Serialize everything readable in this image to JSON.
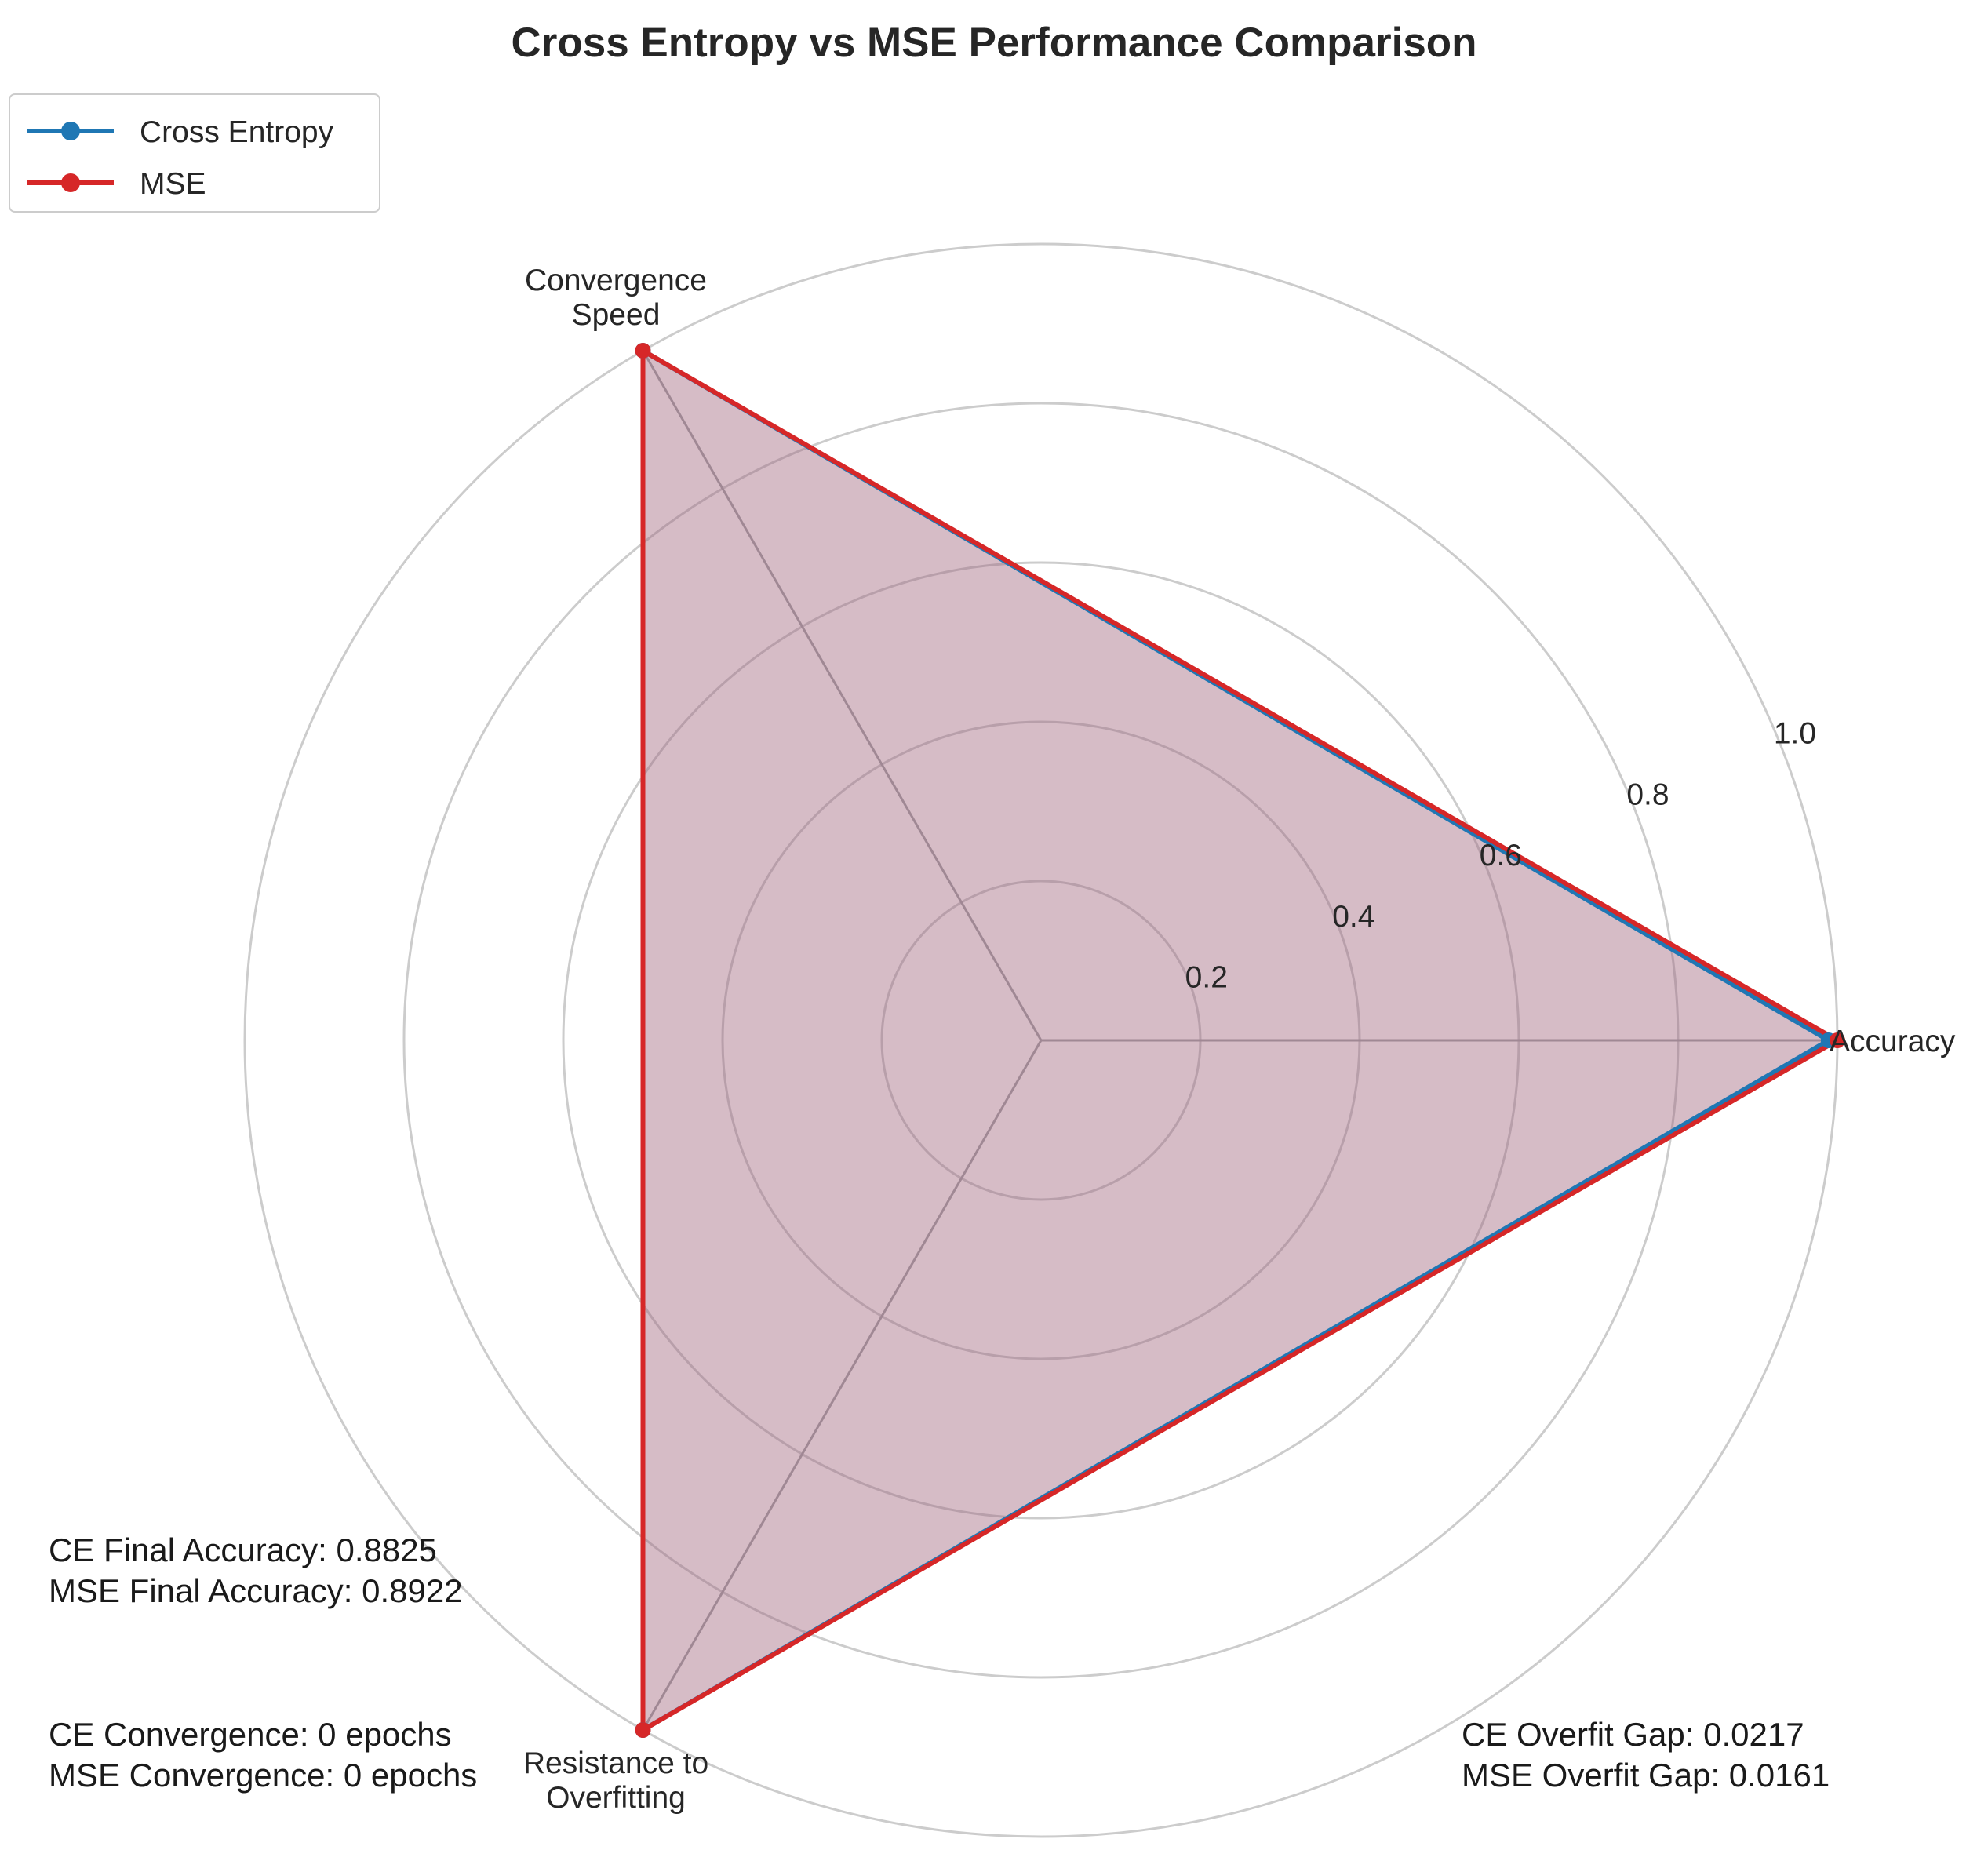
{
  "chart_data": {
    "type": "radar",
    "title": "Cross Entropy vs MSE Performance Comparison",
    "axes": [
      "Accuracy",
      "Convergence Speed",
      "Resistance to Overfitting"
    ],
    "radial_ticks": [
      "0.2",
      "0.4",
      "0.6",
      "0.8",
      "1.0"
    ],
    "rlim": [
      0,
      1.0
    ],
    "grid": true,
    "legend_position": "top-left",
    "series": [
      {
        "name": "Cross Entropy",
        "values": [
          0.989,
          1.0,
          1.0
        ],
        "color": "#1f77b4"
      },
      {
        "name": "MSE",
        "values": [
          1.0,
          1.0,
          1.0
        ],
        "color": "#d62728"
      }
    ],
    "fill_color": "#ccabb8",
    "annotations": [
      {
        "position": "bottom-left",
        "lines": [
          "CE Final Accuracy: 0.8825",
          "MSE Final Accuracy: 0.8922"
        ]
      },
      {
        "position": "bottom-left-lower",
        "lines": [
          "CE Convergence: 0 epochs",
          "MSE Convergence: 0 epochs"
        ]
      },
      {
        "position": "bottom-right",
        "lines": [
          "CE Overfit Gap: 0.0217",
          "MSE Overfit Gap: 0.0161"
        ]
      }
    ]
  }
}
